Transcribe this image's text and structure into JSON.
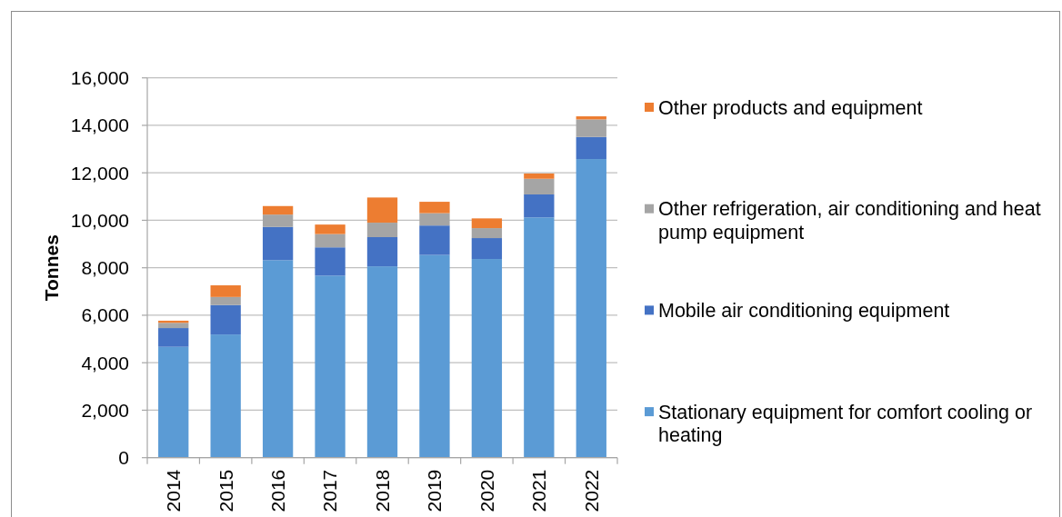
{
  "chart_data": {
    "type": "bar",
    "stacked": true,
    "ylabel": "Tonnes",
    "categories": [
      "2014",
      "2015",
      "2016",
      "2017",
      "2018",
      "2019",
      "2020",
      "2021",
      "2022"
    ],
    "series": [
      {
        "name": "Stationary equipment for comfort cooling or heating",
        "color": "#5b9bd5",
        "values": [
          4670,
          5190,
          8320,
          7670,
          8060,
          8540,
          8370,
          10120,
          12580
        ]
      },
      {
        "name": "Mobile air conditioning equipment",
        "color": "#4472c4",
        "values": [
          790,
          1240,
          1400,
          1190,
          1230,
          1240,
          880,
          970,
          930
        ]
      },
      {
        "name": "Other refrigeration, air conditioning and heat pump equipment",
        "color": "#a5a5a5",
        "values": [
          220,
          340,
          520,
          560,
          610,
          520,
          420,
          660,
          740
        ]
      },
      {
        "name": "Other products and equipment",
        "color": "#ed7d31",
        "values": [
          90,
          490,
          360,
          400,
          1060,
          480,
          410,
          220,
          130
        ]
      }
    ],
    "ylim": [
      0,
      16000
    ],
    "yticks": [
      0,
      {
        "value": 2000,
        "label": "2,000"
      },
      {
        "value": 4000,
        "label": "4,000"
      },
      {
        "value": 6000,
        "label": "6,000"
      },
      {
        "value": 8000,
        "label": "8,000"
      },
      {
        "value": 10000,
        "label": "10,000"
      },
      {
        "value": 12000,
        "label": "12,000"
      },
      {
        "value": 14000,
        "label": "14,000"
      },
      {
        "value": 16000,
        "label": "16,000"
      }
    ],
    "grid": "y",
    "legend": "right"
  }
}
